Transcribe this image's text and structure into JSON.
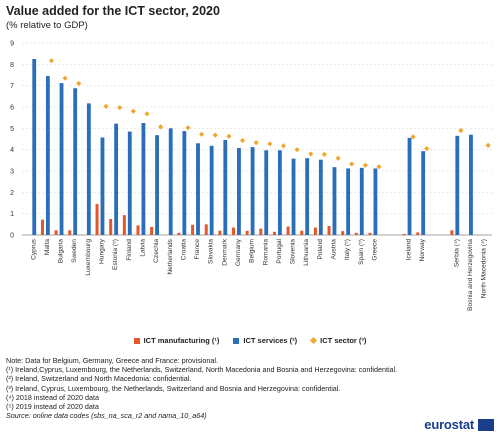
{
  "title": "Value added for the ICT sector, 2020",
  "subtitle": "(% relative to GDP)",
  "legend": {
    "manufacturing": "ICT manufacturing (¹)",
    "services": "ICT services (²)",
    "sector": "ICT sector (³)"
  },
  "notes": [
    "Note: Data for Belgium, Germany, Greece and France: provisional.",
    "(¹) Ireland,Cyprus, Luxembourg, the Netherlands, Switzerland, North Macedonia and Bosnia and Herzegovina: confidential.",
    "(²) Ireland, Switzerland and North Macedonia: confidential.",
    "(³) Ireland, Cyprus, Luxembourg, the Netherlands, Switzerland and Bosnia and Herzegovina: confidential.",
    "(⁴) 2018 instead of 2020 data",
    "(⁵) 2019 instead of 2020 data"
  ],
  "source": "Source: online data codes (sbs_na_sca_r2 and nama_10_a64)",
  "logo_text": "eurostat",
  "colors": {
    "manufacturing": "#e2572b",
    "services": "#2a6eb9",
    "sector": "#f1a72f",
    "grid": "#d6d6d6"
  },
  "chart_data": {
    "type": "bar",
    "ylim": [
      0,
      9
    ],
    "yticks": [
      0,
      1,
      2,
      3,
      4,
      5,
      6,
      7,
      8,
      9
    ],
    "grid": true,
    "legend_position": "bottom",
    "groups": [
      [
        "Cyprus",
        "Malta",
        "Bulgaria",
        "Sweden",
        "Luxembourg",
        "Hungary",
        "Estonia (⁵)",
        "Finland",
        "Latvia",
        "Czechia",
        "Netherlands",
        "Croatia",
        "France",
        "Slovakia",
        "Denmark",
        "Germany",
        "Belgium",
        "Romania",
        "Portugal",
        "Slovenia",
        "Lithuania",
        "Poland",
        "Austria",
        "Italy (⁵)",
        "Spain (⁵)",
        "Greece"
      ],
      [
        "Iceland",
        "Norway"
      ],
      [
        "Serbia (⁴)",
        "Bosnia and Herzegovina",
        "North Macedonia (⁴)"
      ]
    ],
    "categories": [
      "Cyprus",
      "Malta",
      "Bulgaria",
      "Sweden",
      "Luxembourg",
      "Hungary",
      "Estonia (⁵)",
      "Finland",
      "Latvia",
      "Czechia",
      "Netherlands",
      "Croatia",
      "France",
      "Slovakia",
      "Denmark",
      "Germany",
      "Belgium",
      "Romania",
      "Portugal",
      "Slovenia",
      "Lithuania",
      "Poland",
      "Austria",
      "Italy (⁵)",
      "Spain (⁵)",
      "Greece",
      "Iceland",
      "Norway",
      "Serbia (⁴)",
      "Bosnia and Herzegovina",
      "North Macedonia (⁴)"
    ],
    "series": [
      {
        "name": "ICT manufacturing (¹)",
        "kind": "bar",
        "values": [
          null,
          0.72,
          0.22,
          0.22,
          null,
          1.45,
          0.75,
          0.93,
          0.45,
          0.38,
          null,
          0.1,
          0.48,
          0.5,
          0.2,
          0.35,
          0.2,
          0.3,
          0.15,
          0.4,
          0.2,
          0.35,
          0.42,
          0.18,
          0.1,
          0.1,
          0.05,
          0.12,
          0.22,
          null,
          null
        ]
      },
      {
        "name": "ICT services (²)",
        "kind": "bar",
        "values": [
          8.25,
          7.45,
          7.12,
          6.88,
          6.17,
          4.57,
          5.22,
          4.85,
          5.25,
          4.68,
          5.0,
          4.87,
          4.3,
          4.18,
          4.45,
          4.08,
          4.12,
          3.97,
          3.97,
          3.58,
          3.6,
          3.53,
          3.18,
          3.12,
          3.15,
          3.12,
          4.55,
          3.93,
          4.65,
          4.7,
          null
        ]
      },
      {
        "name": "ICT sector (³)",
        "kind": "marker",
        "values": [
          null,
          8.17,
          7.35,
          7.1,
          null,
          6.03,
          5.97,
          5.8,
          5.68,
          5.07,
          null,
          5.03,
          4.72,
          4.68,
          4.63,
          4.43,
          4.33,
          4.27,
          4.18,
          4.0,
          3.8,
          3.78,
          3.6,
          3.33,
          3.27,
          3.2,
          4.6,
          4.05,
          4.9,
          null,
          4.2
        ]
      }
    ]
  }
}
